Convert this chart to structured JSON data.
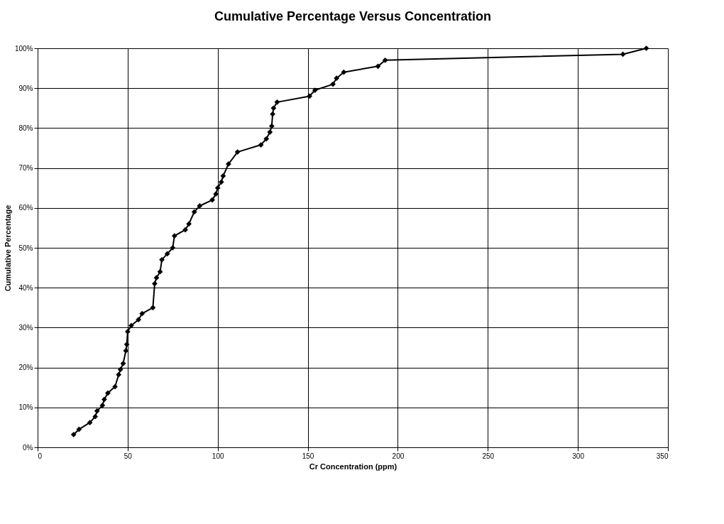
{
  "chart_data": {
    "type": "line",
    "title": "Cumulative Percentage Versus Concentration",
    "xlabel": "Cr Concentration (ppm)",
    "ylabel": "Cumulative Percentage",
    "x": [
      20,
      23,
      29,
      32,
      33,
      36,
      37,
      39,
      43,
      45,
      46,
      47.5,
      49,
      49.5,
      50,
      52,
      56,
      58,
      64,
      65,
      66,
      68,
      69,
      72,
      75,
      76,
      82,
      84,
      87,
      90,
      97,
      99,
      100,
      102,
      103,
      106,
      111,
      124,
      127,
      129,
      130,
      130.5,
      131,
      133,
      151,
      154,
      164,
      166,
      170,
      189,
      193,
      325,
      338
    ],
    "series": [
      {
        "color": "#000000",
        "values": [
          3.2,
          4.5,
          6.2,
          7.7,
          9.1,
          10.5,
          12,
          13.6,
          15.2,
          18.2,
          19.5,
          21,
          24.2,
          25.8,
          29,
          30.5,
          32,
          33.5,
          35,
          41,
          42.5,
          44,
          47,
          48.5,
          50,
          53,
          54.5,
          56,
          59,
          60.5,
          62,
          63.5,
          65,
          66.5,
          68,
          71,
          74,
          75.8,
          77.3,
          79,
          80.5,
          83.5,
          85,
          86.5,
          88,
          89.5,
          91,
          92.5,
          94,
          95.5,
          97,
          98.5,
          100
        ]
      }
    ],
    "xlim": [
      0,
      350
    ],
    "xticks": [
      0,
      50,
      100,
      150,
      200,
      250,
      300,
      350
    ],
    "ylim": [
      0,
      100
    ],
    "yticks": [
      {
        "value": 0,
        "label": "0%"
      },
      {
        "value": 10,
        "label": "10%"
      },
      {
        "value": 20,
        "label": "20%"
      },
      {
        "value": 30,
        "label": "30%"
      },
      {
        "value": 40,
        "label": "40%"
      },
      {
        "value": 50,
        "label": "50%"
      },
      {
        "value": 60,
        "label": "60%"
      },
      {
        "value": 70,
        "label": "70%"
      },
      {
        "value": 80,
        "label": "80%"
      },
      {
        "value": 90,
        "label": "90%"
      },
      {
        "value": 100,
        "label": "100%"
      }
    ],
    "grid": true,
    "marker": "diamond",
    "line_style": "solid"
  }
}
